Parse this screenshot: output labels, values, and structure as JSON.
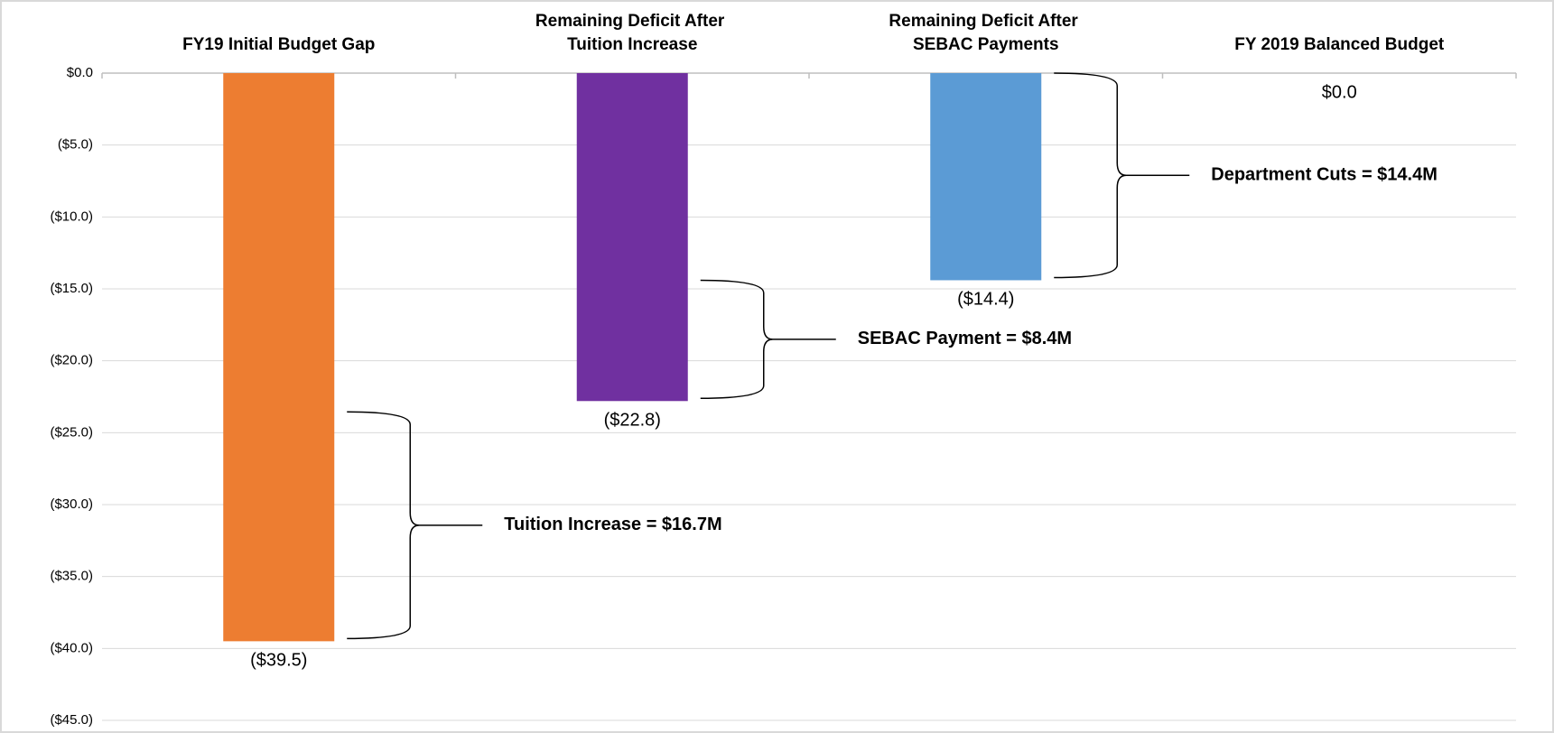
{
  "chart_data": {
    "type": "bar",
    "categories": [
      "FY19 Initial Budget Gap",
      "Remaining Deficit After Tuition Increase",
      "Remaining Deficit After SEBAC Payments",
      "FY 2019 Balanced Budget"
    ],
    "values": [
      -39.5,
      -22.8,
      -14.4,
      0
    ],
    "value_labels": [
      "($39.5)",
      "($22.8)",
      "($14.4)",
      "$0.0"
    ],
    "colors": [
      "#ED7D31",
      "#7030A0",
      "#5B9BD5",
      "#A5A5A5"
    ],
    "annotations": [
      "Tuition Increase = $16.7M",
      "SEBAC Payment = $8.4M",
      "Department Cuts = $14.4M"
    ],
    "ylim": [
      -45,
      0
    ],
    "yticks": [
      {
        "value": 0,
        "label": "$0.0"
      },
      {
        "value": -5,
        "label": "($5.0)"
      },
      {
        "value": -10,
        "label": "($10.0)"
      },
      {
        "value": -15,
        "label": "($15.0)"
      },
      {
        "value": -20,
        "label": "($20.0)"
      },
      {
        "value": -25,
        "label": "($25.0)"
      },
      {
        "value": -30,
        "label": "($30.0)"
      },
      {
        "value": -35,
        "label": "($35.0)"
      },
      {
        "value": -40,
        "label": "($40.0)"
      },
      {
        "value": -45,
        "label": "($45.0)"
      }
    ],
    "grid": true
  }
}
